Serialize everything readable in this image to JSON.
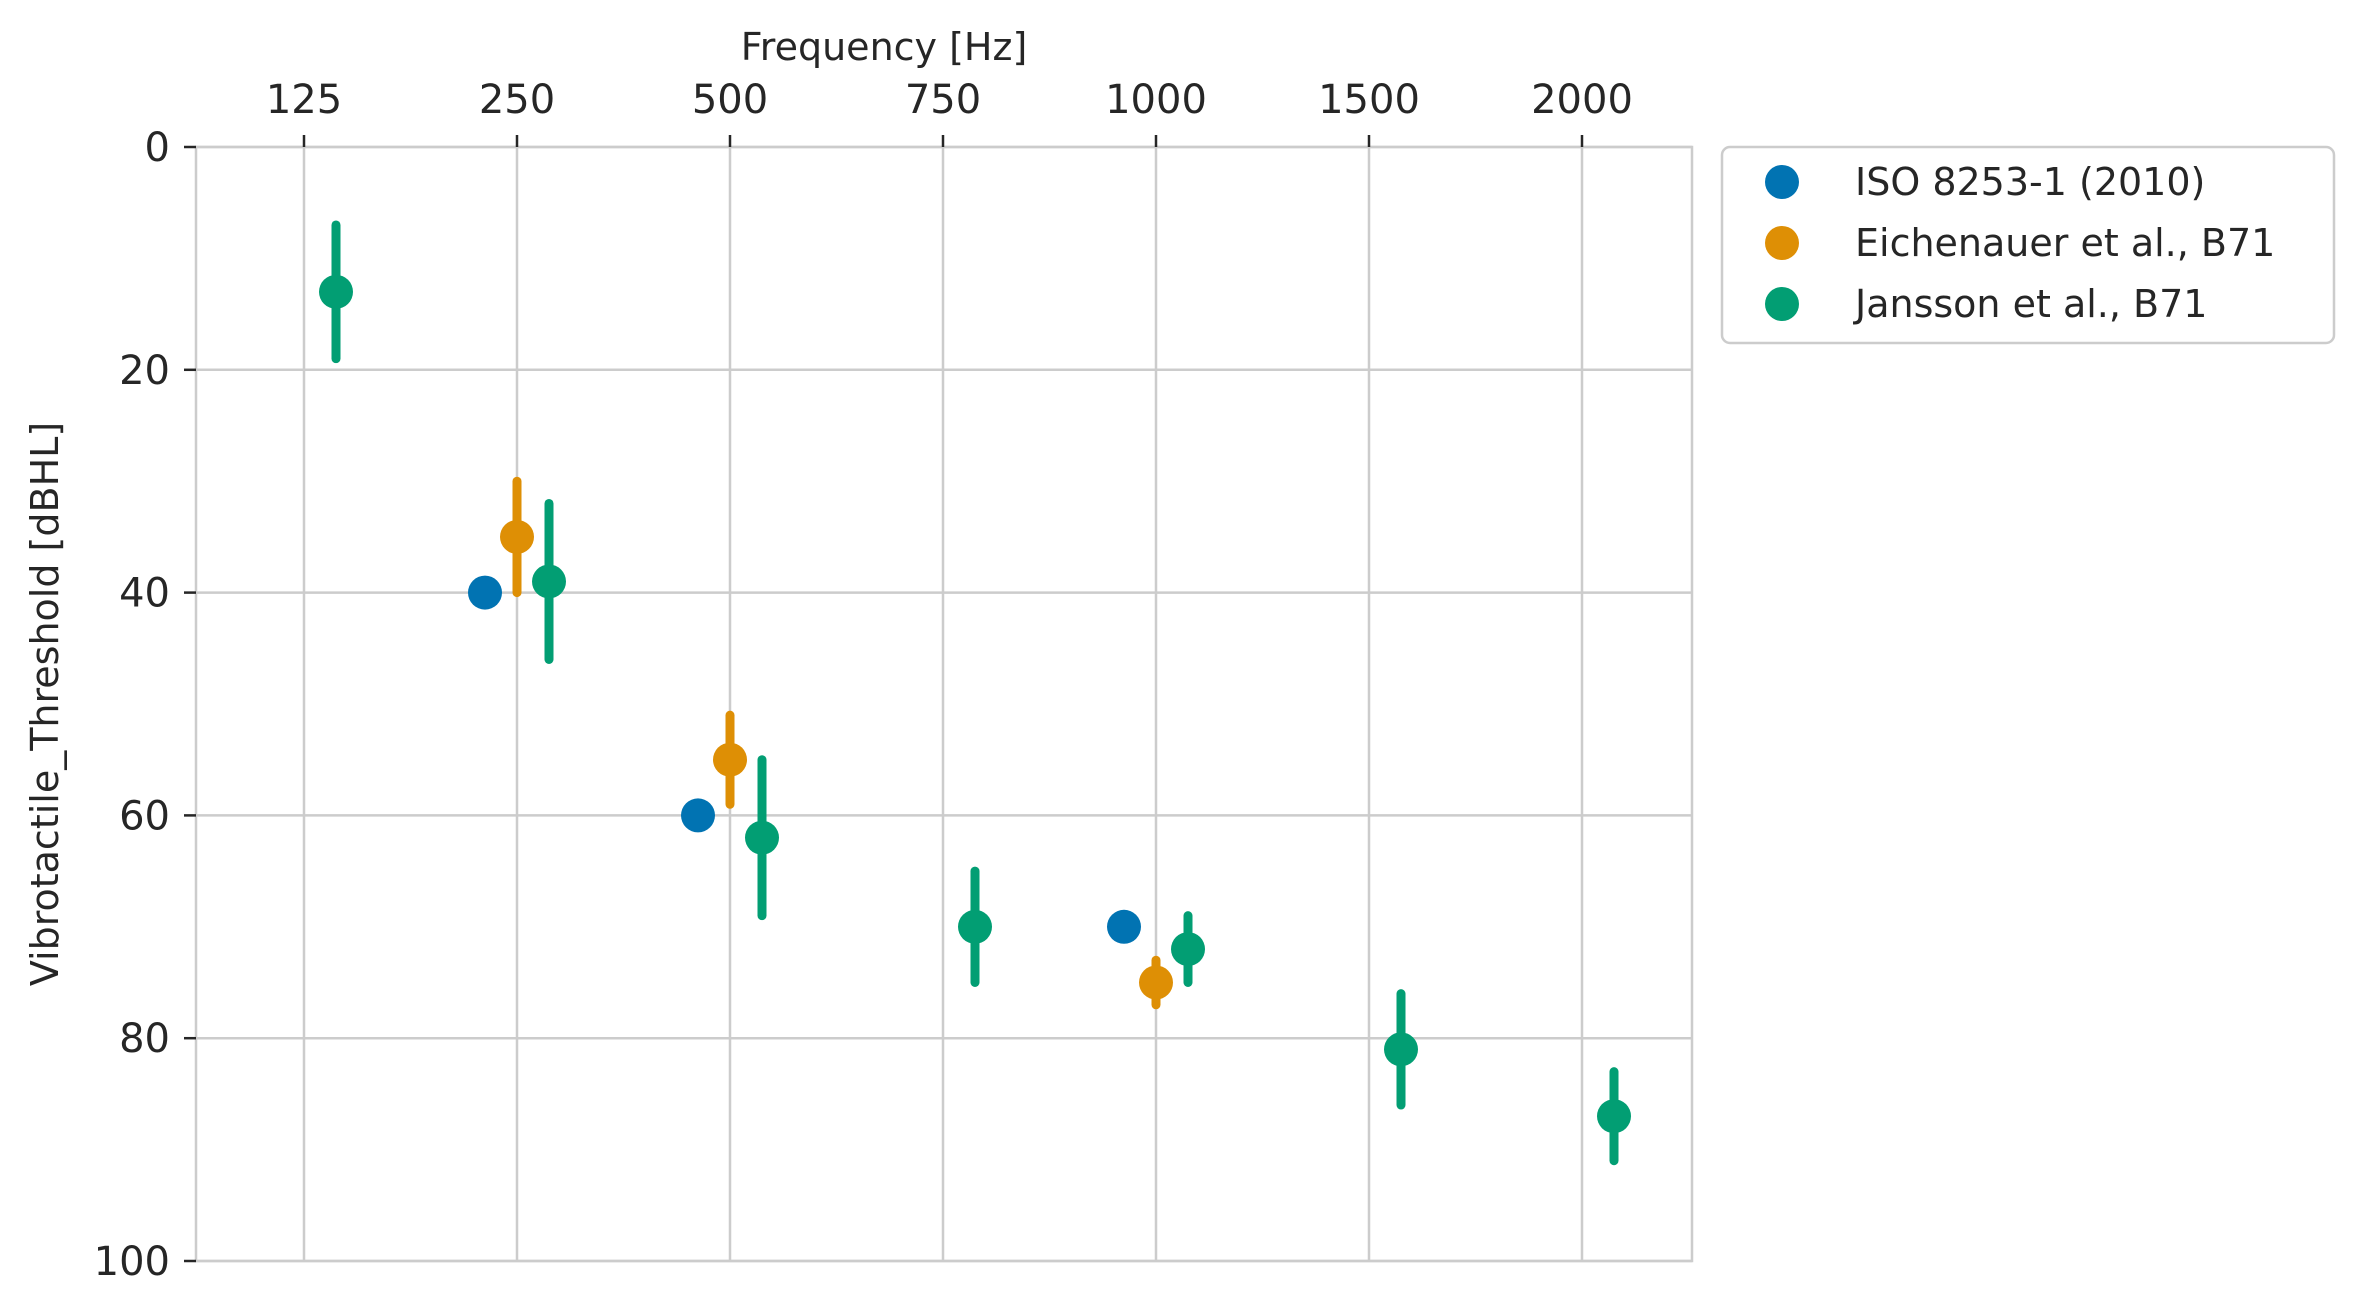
{
  "chart_data": {
    "type": "scatter",
    "xlabel": "Frequency [Hz]",
    "ylabel": "Vibrotactile_Threshold [dBHL]",
    "x_axis_position": "top",
    "y_inverted": true,
    "categories": [
      "125",
      "250",
      "500",
      "750",
      "1000",
      "1500",
      "2000"
    ],
    "ylim": [
      0,
      100
    ],
    "yticks": [
      "0",
      "20",
      "40",
      "60",
      "80",
      "100"
    ],
    "grid": true,
    "legend_position": "outside-top-right",
    "series": [
      {
        "name": "ISO 8253-1 (2010)",
        "color": "#0173b2",
        "points": [
          {
            "category": "250",
            "y": 40
          },
          {
            "category": "500",
            "y": 60
          },
          {
            "category": "1000",
            "y": 70
          }
        ]
      },
      {
        "name": "Eichenauer et al., B71",
        "color": "#de8f05",
        "points": [
          {
            "category": "250",
            "y": 35,
            "lo": 30,
            "hi": 40
          },
          {
            "category": "500",
            "y": 55,
            "lo": 51,
            "hi": 59
          },
          {
            "category": "1000",
            "y": 75,
            "lo": 73,
            "hi": 77
          }
        ]
      },
      {
        "name": "Jansson et al., B71",
        "color": "#029e73",
        "points": [
          {
            "category": "125",
            "y": 13,
            "lo": 7,
            "hi": 19
          },
          {
            "category": "250",
            "y": 39,
            "lo": 32,
            "hi": 46
          },
          {
            "category": "500",
            "y": 62,
            "lo": 55,
            "hi": 69
          },
          {
            "category": "750",
            "y": 70,
            "lo": 65,
            "hi": 75
          },
          {
            "category": "1000",
            "y": 72,
            "lo": 69,
            "hi": 75
          },
          {
            "category": "1500",
            "y": 81,
            "lo": 76,
            "hi": 86
          },
          {
            "category": "2000",
            "y": 87,
            "lo": 83,
            "hi": 91
          }
        ]
      }
    ]
  }
}
